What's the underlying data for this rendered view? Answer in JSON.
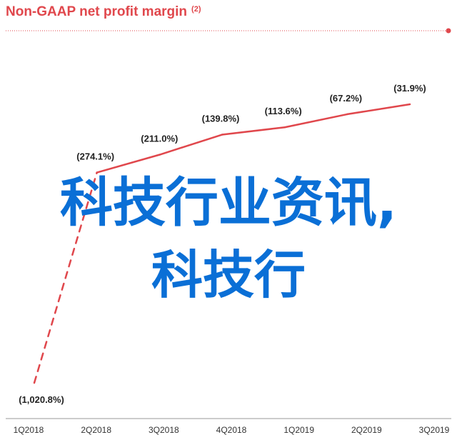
{
  "colors": {
    "accent": "#e0474c",
    "overlay": "#0a6fd6"
  },
  "header": {
    "title": "Non-GAAP net profit margin",
    "footnote": "(2)"
  },
  "overlay": {
    "line1": "科技行业资讯,",
    "line2": "科技行"
  },
  "chart_data": {
    "type": "line",
    "title": "Non-GAAP net profit margin",
    "categories": [
      "1Q2018",
      "2Q2018",
      "3Q2018",
      "4Q2018",
      "1Q2019",
      "2Q2019",
      "3Q2019"
    ],
    "values": [
      -1020.8,
      -274.1,
      -211.0,
      -139.8,
      -113.6,
      -67.2,
      -31.9
    ],
    "data_labels": [
      "(1,020.8%)",
      "(274.1%)",
      "(211.0%)",
      "(139.8%)",
      "(113.6%)",
      "(67.2%)",
      "(31.9%)"
    ],
    "dashed_segment_end_index": 1,
    "ylim": [
      -1020.8,
      -31.9
    ],
    "grid": false
  }
}
